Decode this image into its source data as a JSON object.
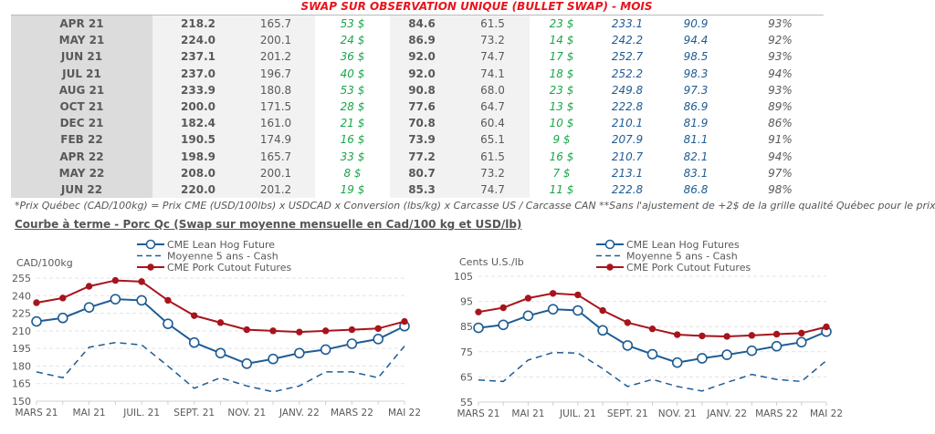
{
  "table": {
    "title": "SWAP SUR OBSERVATION UNIQUE (BULLET SWAP) - MOIS",
    "rows": [
      [
        "APR 21",
        "218.2",
        "165.7",
        "53 $",
        "84.6",
        "61.5",
        "23 $",
        "233.1",
        "90.9",
        "93%"
      ],
      [
        "MAY 21",
        "224.0",
        "200.1",
        "24 $",
        "86.9",
        "73.2",
        "14 $",
        "242.2",
        "94.4",
        "92%"
      ],
      [
        "JUN 21",
        "237.1",
        "201.2",
        "36 $",
        "92.0",
        "74.7",
        "17 $",
        "252.7",
        "98.5",
        "93%"
      ],
      [
        "JUL 21",
        "237.0",
        "196.7",
        "40 $",
        "92.0",
        "74.1",
        "18 $",
        "252.2",
        "98.3",
        "94%"
      ],
      [
        "AUG 21",
        "233.9",
        "180.8",
        "53 $",
        "90.8",
        "68.0",
        "23 $",
        "249.8",
        "97.3",
        "93%"
      ],
      [
        "OCT 21",
        "200.0",
        "171.5",
        "28 $",
        "77.6",
        "64.7",
        "13 $",
        "222.8",
        "86.9",
        "89%"
      ],
      [
        "DEC 21",
        "182.4",
        "161.0",
        "21 $",
        "70.8",
        "60.4",
        "10 $",
        "210.1",
        "81.9",
        "86%"
      ],
      [
        "FEB 22",
        "190.5",
        "174.9",
        "16 $",
        "73.9",
        "65.1",
        "9 $",
        "207.9",
        "81.1",
        "91%"
      ],
      [
        "APR 22",
        "198.9",
        "165.7",
        "33 $",
        "77.2",
        "61.5",
        "16 $",
        "210.7",
        "82.1",
        "94%"
      ],
      [
        "MAY 22",
        "208.0",
        "200.1",
        "8 $",
        "80.7",
        "73.2",
        "7 $",
        "213.1",
        "83.1",
        "97%"
      ],
      [
        "JUN 22",
        "220.0",
        "201.2",
        "19 $",
        "85.3",
        "74.7",
        "11 $",
        "222.8",
        "86.8",
        "98%"
      ]
    ],
    "footnote": "*Prix Québec (CAD/100kg) = Prix CME (USD/100lbs) x USDCAD x Conversion (lbs/kg) x Carcasse US / Carcasse CAN **Sans l'ajustement de +2$ de la grille qualité Québec pour le prix"
  },
  "charts_title": "Courbe à terme - Porc Qc (Swap sur moyenne mensuelle en Cad/100 kg et USD/lb)",
  "colors": {
    "lean_hog": "#1f5c94",
    "moyenne": "#1f5c94",
    "cutout": "#a8141c",
    "green": "#1aa64a",
    "title_red": "#e8141c"
  },
  "chart_data": [
    {
      "type": "line",
      "ylabel": "CAD/100kg",
      "ylim": [
        150,
        255
      ],
      "yticks": [
        "150",
        "165",
        "180",
        "195",
        "210",
        "225",
        "240",
        "255"
      ],
      "xtick_labels": [
        "MARS 21",
        "MAI 21",
        "JUIL. 21",
        "SEPT. 21",
        "NOV. 21",
        "JANV. 22",
        "MARS 22",
        "MAI 22"
      ],
      "x": [
        "2021-03",
        "2021-04",
        "2021-05",
        "2021-06",
        "2021-07",
        "2021-08",
        "2021-09",
        "2021-10",
        "2021-11",
        "2021-12",
        "2022-01",
        "2022-02",
        "2022-03",
        "2022-04",
        "2022-05"
      ],
      "grid": true,
      "legend_placement": "top-center",
      "series": [
        {
          "name": "CME Lean Hog Future",
          "style": "line-open-circle",
          "values": [
            218,
            221,
            230,
            237,
            236,
            216,
            200,
            191,
            182,
            186,
            191,
            194,
            199,
            203,
            214
          ]
        },
        {
          "name": "Moyenne 5 ans - Cash",
          "style": "dashed",
          "values": [
            175,
            170,
            196,
            200,
            198,
            180,
            161,
            170,
            163,
            158,
            163,
            175,
            175,
            170,
            197
          ]
        },
        {
          "name": "CME Pork Cutout Futures",
          "style": "line-filled-dot",
          "values": [
            234,
            238,
            248,
            253,
            252,
            236,
            223,
            217,
            211,
            210,
            209,
            210,
            211,
            212,
            218
          ]
        }
      ]
    },
    {
      "type": "line",
      "ylabel": "Cents U.S./lb",
      "ylim": [
        55,
        105
      ],
      "yticks": [
        "55",
        "65",
        "75",
        "85",
        "95",
        "105"
      ],
      "xtick_labels": [
        "MARS 21",
        "MAI 21",
        "JUIL. 21",
        "SEPT. 21",
        "NOV. 21",
        "JANV. 22",
        "MARS 22",
        "MAI 22"
      ],
      "x": [
        "2021-03",
        "2021-04",
        "2021-05",
        "2021-06",
        "2021-07",
        "2021-08",
        "2021-09",
        "2021-10",
        "2021-11",
        "2021-12",
        "2022-01",
        "2022-02",
        "2022-03",
        "2022-04",
        "2022-05"
      ],
      "grid": true,
      "legend_placement": "top-center",
      "series": [
        {
          "name": "CME Lean Hog Futures",
          "style": "line-open-circle",
          "values": [
            84.5,
            85.7,
            89.3,
            91.9,
            91.4,
            83.5,
            77.5,
            74,
            70.7,
            72.4,
            73.8,
            75.4,
            77.2,
            78.8,
            83
          ]
        },
        {
          "name": "Moyenne 5 ans - Cash",
          "style": "dashed",
          "values": [
            63.8,
            63.2,
            71.7,
            74.7,
            74.5,
            68.3,
            61.2,
            64,
            61.2,
            59.4,
            62.8,
            66,
            64,
            63.2,
            71.5
          ]
        },
        {
          "name": "CME Pork Cutout Futures",
          "style": "line-filled-dot",
          "values": [
            90.8,
            92.5,
            96.3,
            98.2,
            97.6,
            91.4,
            86.6,
            84.1,
            81.8,
            81.3,
            81.1,
            81.5,
            82,
            82.4,
            84.9
          ]
        }
      ]
    }
  ]
}
